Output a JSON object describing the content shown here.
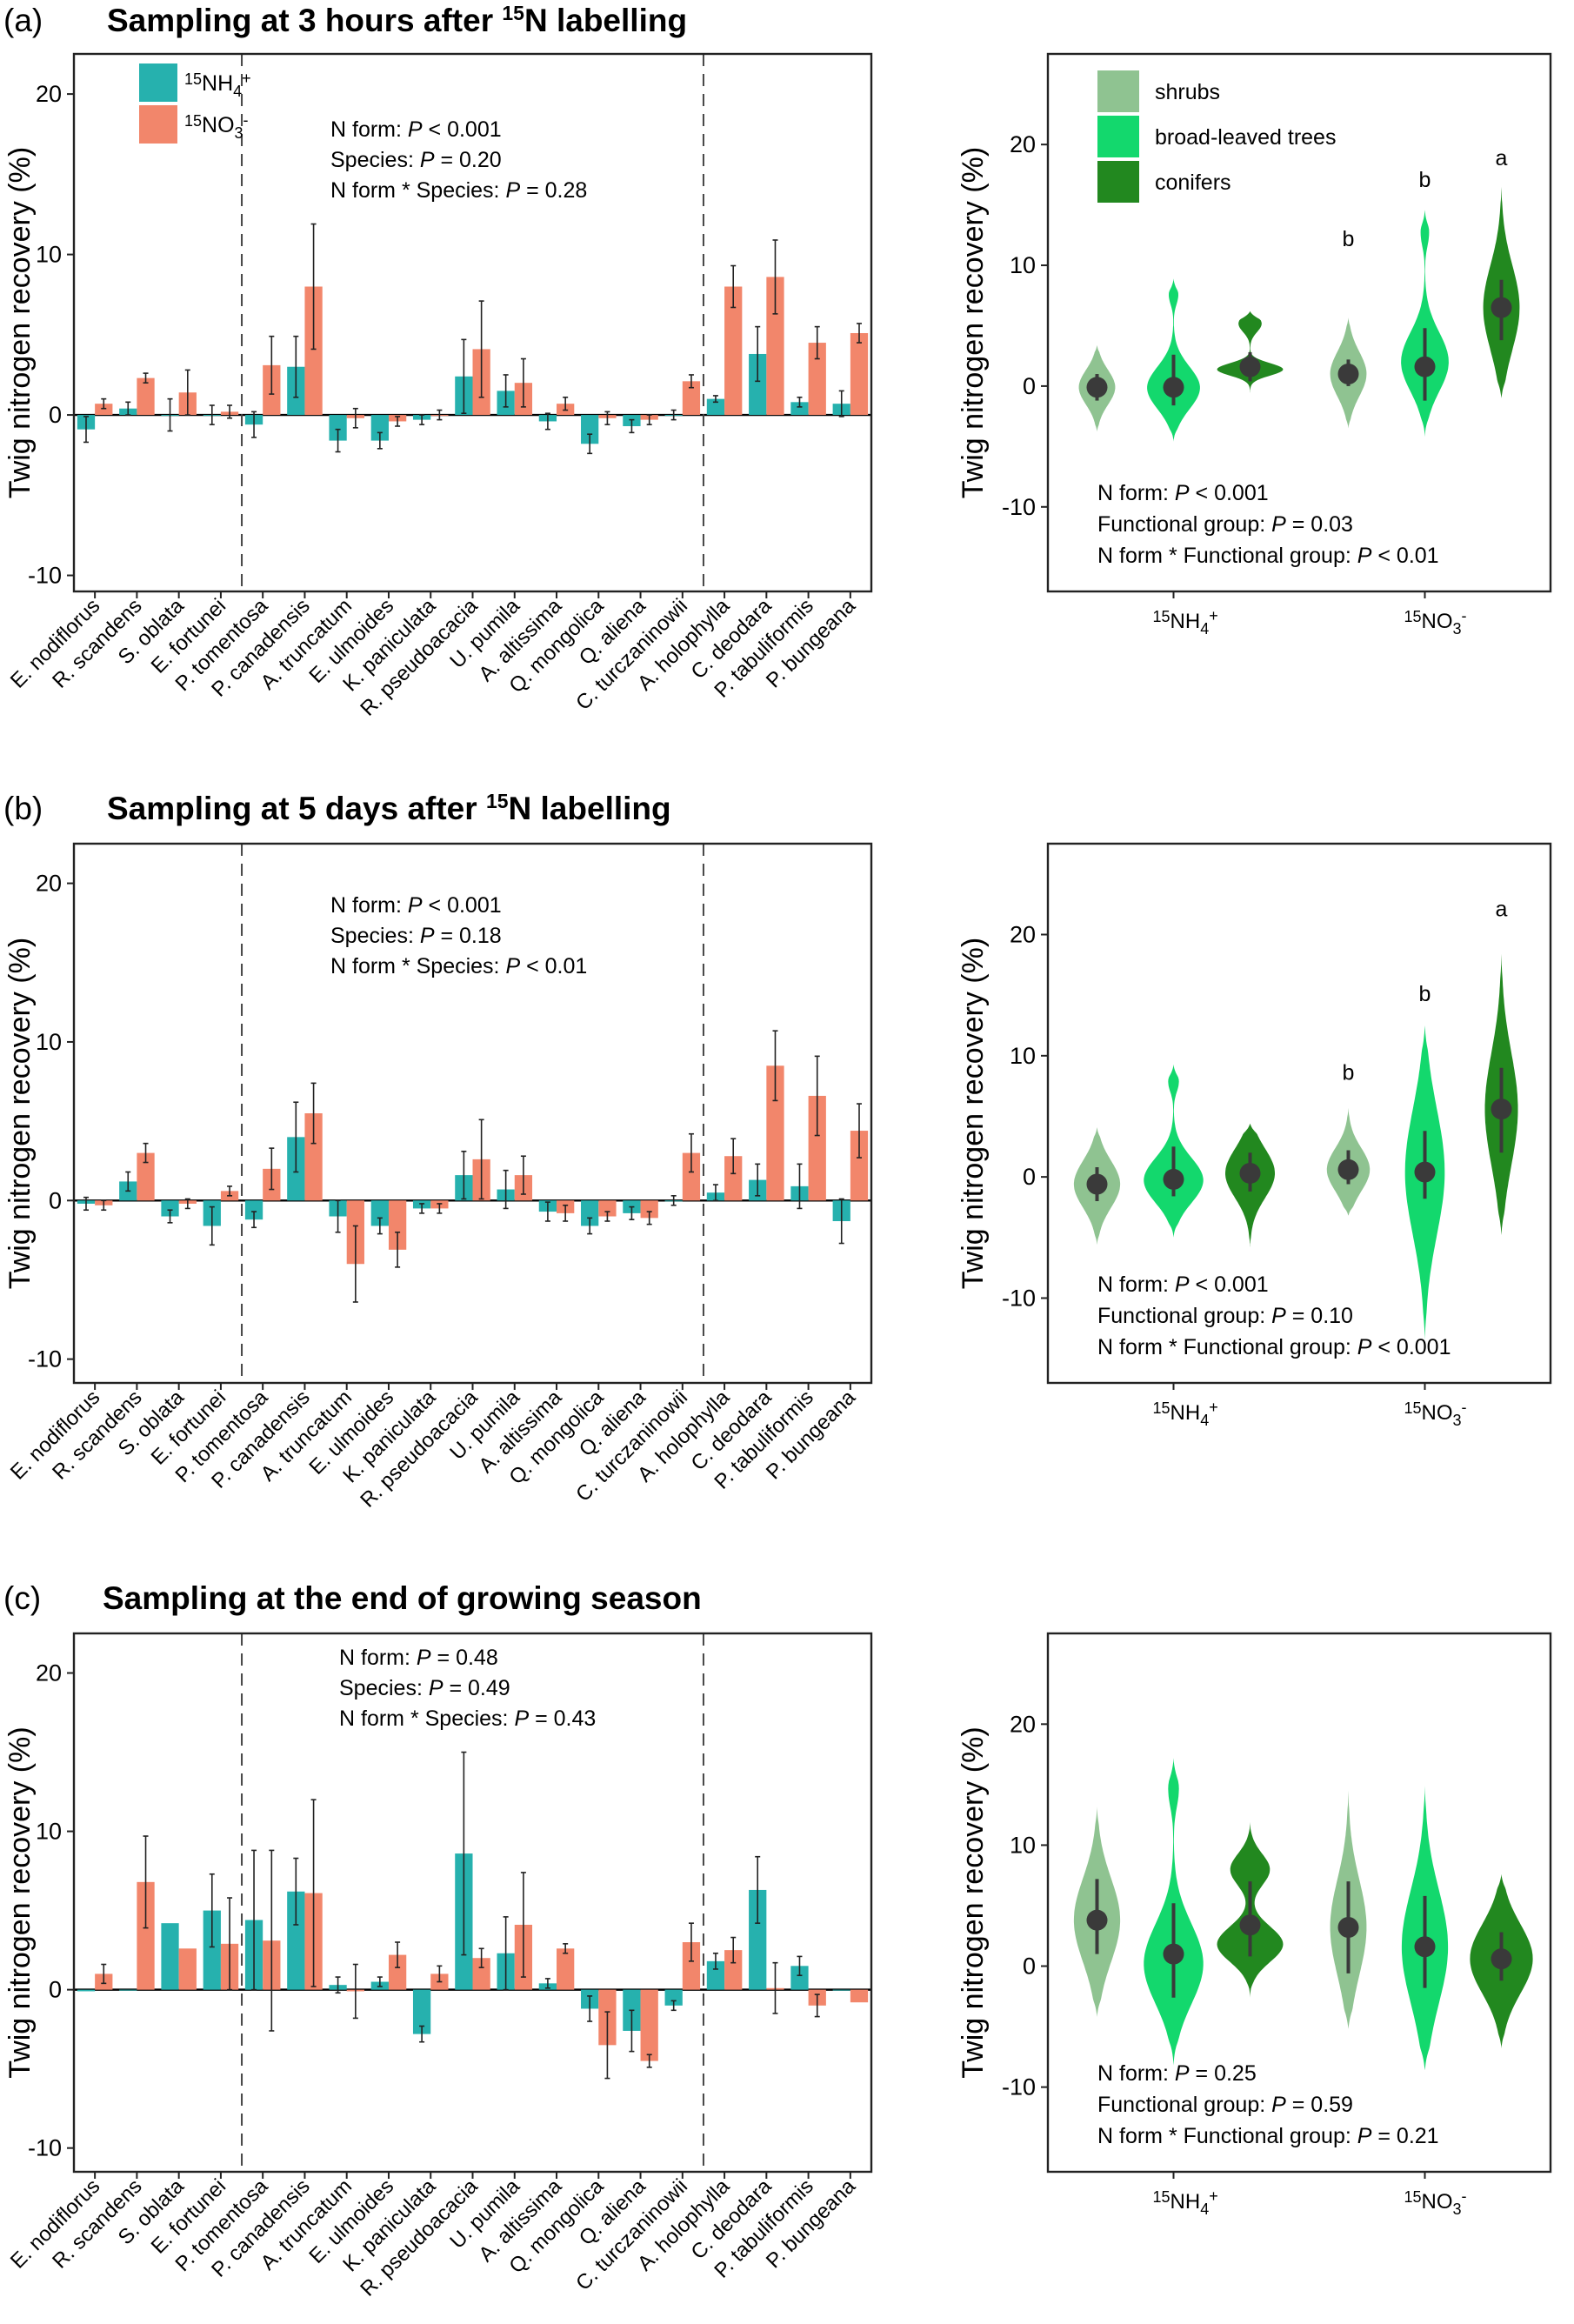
{
  "figure": {
    "panels": [
      {
        "label": "(a)",
        "title": "Sampling at 3 hours after ",
        "title_sup": "15",
        "title_after": "N labelling"
      },
      {
        "label": "(b)",
        "title": "Sampling at 5 days after ",
        "title_sup": "15",
        "title_after": "N labelling"
      },
      {
        "label": "(c)",
        "title": "Sampling at the end of growing season",
        "title_sup": "",
        "title_after": ""
      }
    ],
    "ylabel": "Twig nitrogen recovery (%)",
    "colors": {
      "nh4": "#26b1ae",
      "no3": "#f2866b",
      "shrubs": "#8fc391",
      "broadleaved": "#13d86d",
      "conifers": "#22881f"
    }
  },
  "chart_data": [
    {
      "type": "bar",
      "panel": "a",
      "ylim": [
        -11,
        22.5
      ],
      "yticks": [
        -10,
        0,
        10,
        20
      ],
      "categories": [
        "E. nodiflorus",
        "R. scandens",
        "S. oblata",
        "E. fortunei",
        "P. tomentosa",
        "P. canadensis",
        "A. truncatum",
        "E. ulmoides",
        "K. paniculata",
        "R. pseudoacacia",
        "U. pumila",
        "A. altissima",
        "Q. mongolica",
        "Q. aliena",
        "C. turczaninowii",
        "A. holophylla",
        "C. deodara",
        "P. tabuliformis",
        "P. bungeana"
      ],
      "group_dividers_after": [
        3,
        14
      ],
      "legend": [
        {
          "sup": "15",
          "base": "NH",
          "sub": "4",
          "sup2": "+"
        },
        {
          "sup": "15",
          "base": "NO",
          "sub": "3",
          "sup2": "-"
        }
      ],
      "series": [
        {
          "name": "15NH4+",
          "values": [
            -0.9,
            0.4,
            0.0,
            0.0,
            -0.6,
            3.0,
            -1.6,
            -1.6,
            -0.3,
            2.4,
            1.5,
            -0.4,
            -1.8,
            -0.7,
            0.0,
            1.0,
            3.8,
            0.8,
            0.7
          ],
          "errors": [
            0.8,
            0.4,
            1.0,
            0.6,
            0.8,
            1.9,
            0.7,
            0.5,
            0.3,
            2.3,
            1.0,
            0.5,
            0.6,
            0.4,
            0.3,
            0.2,
            1.7,
            0.3,
            0.8
          ]
        },
        {
          "name": "15NO3-",
          "values": [
            0.7,
            2.3,
            1.4,
            0.2,
            3.1,
            8.0,
            -0.2,
            -0.4,
            0.0,
            4.1,
            2.0,
            0.7,
            -0.2,
            -0.3,
            2.1,
            8.0,
            8.6,
            4.5,
            5.1
          ]
        }
      ],
      "no3_errors": [
        0.3,
        0.3,
        1.4,
        0.4,
        1.8,
        3.9,
        0.6,
        0.3,
        0.3,
        3.0,
        1.5,
        0.4,
        0.4,
        0.3,
        0.4,
        1.3,
        2.3,
        1.0,
        0.6
      ],
      "stats": [
        {
          "label": "N form: ",
          "p": "P",
          "value": " < 0.001"
        },
        {
          "label": "Species: ",
          "p": "P",
          "value": " = 0.20"
        },
        {
          "label": "N form * Species: ",
          "p": "P",
          "value": " = 0.28"
        }
      ]
    },
    {
      "type": "violin",
      "panel": "a",
      "ylim": [
        -17,
        27.5
      ],
      "yticks": [
        -10,
        0,
        10,
        20
      ],
      "groups": [
        {
          "sup": "15",
          "base": "NH",
          "sub": "4",
          "sup2": "+"
        },
        {
          "sup": "15",
          "base": "NO",
          "sub": "3",
          "sup2": "-"
        }
      ],
      "legend": [
        "shrubs",
        "broad-leaved trees",
        "conifers"
      ],
      "violins": [
        {
          "group": 0,
          "type": 0,
          "median": -0.1,
          "q1": -1.2,
          "q3": 1.0,
          "min": -3.8,
          "max": 3.4,
          "width": 0.55,
          "shape": "normal"
        },
        {
          "group": 0,
          "type": 1,
          "median": -0.1,
          "q1": -1.6,
          "q3": 2.6,
          "min": -4.6,
          "max": 8.9,
          "width": 0.8,
          "shape": "bottom"
        },
        {
          "group": 0,
          "type": 2,
          "median": 1.6,
          "q1": 0.4,
          "q3": 2.8,
          "min": -2.4,
          "max": 6.2,
          "width": 1.0,
          "shape": "bottom2"
        },
        {
          "group": 1,
          "type": 0,
          "median": 1.0,
          "q1": 0.0,
          "q3": 2.2,
          "min": -3.5,
          "max": 5.7,
          "width": 0.55,
          "shape": "normal"
        },
        {
          "group": 1,
          "type": 1,
          "median": 1.6,
          "q1": -1.2,
          "q3": 4.8,
          "min": -4.2,
          "max": 14.6,
          "width": 0.72,
          "shape": "bottom"
        },
        {
          "group": 1,
          "type": 2,
          "median": 6.5,
          "q1": 3.8,
          "q3": 8.8,
          "min": -1.0,
          "max": 16.5,
          "width": 0.55,
          "shape": "normal"
        }
      ],
      "letters": [
        {
          "group": 1,
          "type": 0,
          "text": "b",
          "y": 11.6
        },
        {
          "group": 1,
          "type": 1,
          "text": "b",
          "y": 16.5
        },
        {
          "group": 1,
          "type": 2,
          "text": "a",
          "y": 18.3
        }
      ],
      "stats": [
        {
          "label": "N form: ",
          "p": "P",
          "value": " < 0.001"
        },
        {
          "label": "Functional group: ",
          "p": "P",
          "value": " = 0.03"
        },
        {
          "label": "N form * Functional group: ",
          "p": "P",
          "value": " < 0.01"
        }
      ]
    },
    {
      "type": "bar",
      "panel": "b",
      "ylim": [
        -11.5,
        22.5
      ],
      "yticks": [
        -10,
        0,
        10,
        20
      ],
      "categories": [
        "E. nodiflorus",
        "R. scandens",
        "S. oblata",
        "E. fortunei",
        "P. tomentosa",
        "P. canadensis",
        "A. truncatum",
        "E. ulmoides",
        "K. paniculata",
        "R. pseudoacacia",
        "U. pumila",
        "A. altissima",
        "Q. mongolica",
        "Q. aliena",
        "C. turczaninowii",
        "A. holophylla",
        "C. deodara",
        "P. tabuliformis",
        "P. bungeana"
      ],
      "group_dividers_after": [
        3,
        14
      ],
      "series": [
        {
          "name": "15NH4+",
          "values": [
            -0.2,
            1.2,
            -1.0,
            -1.6,
            -1.2,
            4.0,
            -1.0,
            -1.6,
            -0.5,
            1.6,
            0.7,
            -0.7,
            -1.6,
            -0.8,
            0.0,
            0.5,
            1.3,
            0.9,
            -1.3
          ],
          "errors": [
            0.4,
            0.6,
            0.4,
            1.2,
            0.5,
            2.2,
            1.0,
            0.5,
            0.3,
            1.5,
            1.2,
            0.6,
            0.5,
            0.4,
            0.3,
            0.5,
            1.0,
            1.4,
            1.4
          ]
        },
        {
          "name": "15NO3-",
          "values": [
            -0.3,
            3.0,
            -0.2,
            0.6,
            2.0,
            5.5,
            -4.0,
            -3.1,
            -0.5,
            2.6,
            1.6,
            -0.8,
            -1.0,
            -1.1,
            3.0,
            2.8,
            8.5,
            6.6,
            4.4
          ]
        }
      ],
      "no3_errors": [
        0.3,
        0.6,
        0.3,
        0.3,
        1.3,
        1.9,
        2.4,
        1.1,
        0.3,
        2.5,
        1.2,
        0.5,
        0.3,
        0.4,
        1.2,
        1.1,
        2.2,
        2.5,
        1.7
      ],
      "stats": [
        {
          "label": "N form: ",
          "p": "P",
          "value": " < 0.001"
        },
        {
          "label": "Species: ",
          "p": "P",
          "value": " = 0.18"
        },
        {
          "label": "N form * Species: ",
          "p": "P",
          "value": " < 0.01"
        }
      ]
    },
    {
      "type": "violin",
      "panel": "b",
      "ylim": [
        -17,
        27.5
      ],
      "yticks": [
        -10,
        0,
        10,
        20
      ],
      "groups": [
        {
          "sup": "15",
          "base": "NH",
          "sub": "4",
          "sup2": "+"
        },
        {
          "sup": "15",
          "base": "NO",
          "sub": "3",
          "sup2": "-"
        }
      ],
      "violins": [
        {
          "group": 0,
          "type": 0,
          "median": -0.6,
          "q1": -2.0,
          "q3": 0.8,
          "min": -5.6,
          "max": 4.1,
          "width": 0.7,
          "shape": "normal"
        },
        {
          "group": 0,
          "type": 1,
          "median": -0.2,
          "q1": -1.6,
          "q3": 2.5,
          "min": -5.0,
          "max": 9.3,
          "width": 0.9,
          "shape": "bottom"
        },
        {
          "group": 0,
          "type": 2,
          "median": 0.3,
          "q1": -1.2,
          "q3": 2.0,
          "min": -5.8,
          "max": 4.4,
          "width": 0.75,
          "shape": "normal"
        },
        {
          "group": 1,
          "type": 0,
          "median": 0.6,
          "q1": -0.6,
          "q3": 2.2,
          "min": -3.2,
          "max": 5.7,
          "width": 0.65,
          "shape": "normal"
        },
        {
          "group": 1,
          "type": 1,
          "median": 0.4,
          "q1": -1.8,
          "q3": 3.8,
          "min": -13.5,
          "max": 12.5,
          "width": 0.6,
          "shape": "normal"
        },
        {
          "group": 1,
          "type": 2,
          "median": 5.6,
          "q1": 2.0,
          "q3": 9.0,
          "min": -4.8,
          "max": 18.4,
          "width": 0.5,
          "shape": "normal"
        }
      ],
      "letters": [
        {
          "group": 1,
          "type": 0,
          "text": "b",
          "y": 8.0
        },
        {
          "group": 1,
          "type": 1,
          "text": "b",
          "y": 14.5
        },
        {
          "group": 1,
          "type": 2,
          "text": "a",
          "y": 21.5
        }
      ],
      "stats": [
        {
          "label": "N form: ",
          "p": "P",
          "value": " < 0.001"
        },
        {
          "label": "Functional group: ",
          "p": "P",
          "value": " = 0.10"
        },
        {
          "label": "N form * Functional group: ",
          "p": "P",
          "value": " < 0.001"
        }
      ]
    },
    {
      "type": "bar",
      "panel": "c",
      "ylim": [
        -11.5,
        22.5
      ],
      "yticks": [
        -10,
        0,
        10,
        20
      ],
      "categories": [
        "E. nodiflorus",
        "R. scandens",
        "S. oblata",
        "E. fortunei",
        "P. tomentosa",
        "P. canadensis",
        "A. truncatum",
        "E. ulmoides",
        "K. paniculata",
        "R. pseudoacacia",
        "U. pumila",
        "A. altissima",
        "Q. mongolica",
        "Q. aliena",
        "C. turczaninowii",
        "A. holophylla",
        "C. deodara",
        "P. tabuliformis",
        "P. bungeana"
      ],
      "group_dividers_after": [
        3,
        14
      ],
      "series": [
        {
          "name": "15NH4+",
          "values": [
            -0.1,
            0.0,
            4.2,
            5.0,
            4.4,
            6.2,
            0.3,
            0.5,
            -2.8,
            8.6,
            2.3,
            0.4,
            -1.2,
            -2.6,
            -1.0,
            1.8,
            6.3,
            1.5,
            0.0
          ],
          "errors": [
            0.0,
            0.0,
            0.0,
            2.3,
            4.4,
            2.1,
            0.5,
            0.3,
            0.5,
            6.4,
            2.3,
            0.3,
            0.8,
            1.3,
            0.3,
            0.5,
            2.1,
            0.6,
            0.0
          ]
        },
        {
          "name": "15NO3-",
          "values": [
            1.0,
            6.8,
            2.6,
            2.9,
            3.1,
            6.1,
            -0.1,
            2.2,
            1.0,
            2.0,
            4.1,
            2.6,
            -3.5,
            -4.5,
            3.0,
            2.5,
            0.1,
            -1.0,
            -0.8
          ]
        }
      ],
      "no3_errors": [
        0.6,
        2.9,
        0.0,
        2.9,
        5.7,
        5.9,
        1.7,
        0.8,
        0.5,
        0.6,
        3.3,
        0.3,
        2.1,
        0.4,
        1.2,
        0.8,
        1.6,
        0.7,
        0.0
      ],
      "stats": [
        {
          "label": "N form: ",
          "p": "P",
          "value": " = 0.48"
        },
        {
          "label": "Species: ",
          "p": "P",
          "value": " = 0.49"
        },
        {
          "label": "N form * Species: ",
          "p": "P",
          "value": " = 0.43"
        }
      ]
    },
    {
      "type": "violin",
      "panel": "c",
      "ylim": [
        -17,
        27.5
      ],
      "yticks": [
        -10,
        0,
        10,
        20
      ],
      "groups": [
        {
          "sup": "15",
          "base": "NH",
          "sub": "4",
          "sup2": "+"
        },
        {
          "sup": "15",
          "base": "NO",
          "sub": "3",
          "sup2": "-"
        }
      ],
      "violins": [
        {
          "group": 0,
          "type": 0,
          "median": 3.8,
          "q1": 1.0,
          "q3": 7.2,
          "min": -4.2,
          "max": 13.2,
          "width": 0.7,
          "shape": "normal"
        },
        {
          "group": 0,
          "type": 1,
          "median": 1.0,
          "q1": -2.6,
          "q3": 5.2,
          "min": -8.2,
          "max": 17.2,
          "width": 0.9,
          "shape": "bottom"
        },
        {
          "group": 0,
          "type": 2,
          "median": 3.4,
          "q1": 0.8,
          "q3": 7.0,
          "min": -2.6,
          "max": 12.1,
          "width": 1.0,
          "shape": "bimodal"
        },
        {
          "group": 1,
          "type": 0,
          "median": 3.2,
          "q1": -0.6,
          "q3": 7.0,
          "min": -5.2,
          "max": 14.5,
          "width": 0.55,
          "shape": "normal"
        },
        {
          "group": 1,
          "type": 1,
          "median": 1.6,
          "q1": -1.8,
          "q3": 5.8,
          "min": -8.6,
          "max": 14.9,
          "width": 0.7,
          "shape": "normal"
        },
        {
          "group": 1,
          "type": 2,
          "median": 0.6,
          "q1": -1.2,
          "q3": 2.8,
          "min": -6.8,
          "max": 7.6,
          "width": 0.95,
          "shape": "normal"
        }
      ],
      "letters": [],
      "stats": [
        {
          "label": "N form: ",
          "p": "P",
          "value": " = 0.25"
        },
        {
          "label": "Functional group: ",
          "p": "P",
          "value": " = 0.59"
        },
        {
          "label": "N form * Functional group: ",
          "p": "P",
          "value": " = 0.21"
        }
      ]
    }
  ]
}
